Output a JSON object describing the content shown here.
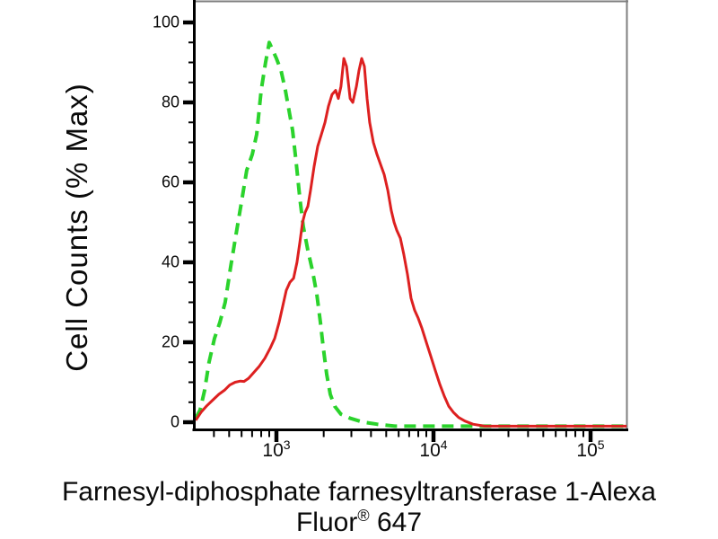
{
  "figure": {
    "y_axis": {
      "title": "Cell Counts (% Max)",
      "major_ticks": [
        0,
        20,
        40,
        60,
        80,
        100
      ],
      "minor_tick_step": 5,
      "range": [
        0,
        100
      ]
    },
    "x_axis": {
      "title_line1": "Farnesyl-diphosphate farnesyltransferase 1-Alexa",
      "title_line2_word": "Fluor",
      "title_line2_symbol": "®",
      "title_line2_number": " 647",
      "scale": "log10",
      "tick_base": "10",
      "major_tick_exponents": [
        3,
        4,
        5
      ],
      "minor_tick_mantissas": [
        2,
        3,
        4,
        5,
        6,
        7,
        8,
        9
      ],
      "range_log10": [
        2.49,
        5.23
      ]
    },
    "colors": {
      "red_curve": "#dd2020",
      "green_curve": "#2bd32c",
      "axis": "#000000",
      "frame": "#7f7f7f",
      "background": "#ffffff"
    }
  },
  "chart_data": {
    "type": "line",
    "subtype": "flow-cytometry-histogram-overlay",
    "title": "",
    "xlabel": "Farnesyl-diphosphate farnesyltransferase 1-Alexa Fluor® 647",
    "ylabel": "Cell Counts (% Max)",
    "x_scale": "log10",
    "xlim_log10": [
      2.49,
      5.23
    ],
    "ylim": [
      0,
      100
    ],
    "grid": false,
    "legend": "none",
    "baseline_pct": -1,
    "series": [
      {
        "name": "green_dashed_histogram",
        "color": "#2bd32c",
        "line_style": "dashed",
        "peak": {
          "x": 900,
          "pct": 95
        },
        "points_log10_pct": [
          [
            2.486,
            1
          ],
          [
            2.514,
            3
          ],
          [
            2.543,
            8
          ],
          [
            2.571,
            15
          ],
          [
            2.606,
            21
          ],
          [
            2.64,
            25
          ],
          [
            2.674,
            30
          ],
          [
            2.709,
            39
          ],
          [
            2.743,
            47
          ],
          [
            2.777,
            55
          ],
          [
            2.811,
            63
          ],
          [
            2.846,
            67
          ],
          [
            2.874,
            72
          ],
          [
            2.903,
            83
          ],
          [
            2.931,
            90
          ],
          [
            2.954,
            95
          ],
          [
            2.977,
            93
          ],
          [
            3.0,
            91
          ],
          [
            3.029,
            88
          ],
          [
            3.057,
            83
          ],
          [
            3.08,
            78
          ],
          [
            3.103,
            73
          ],
          [
            3.126,
            65
          ],
          [
            3.149,
            56
          ],
          [
            3.171,
            49
          ],
          [
            3.2,
            43
          ],
          [
            3.229,
            38
          ],
          [
            3.257,
            32
          ],
          [
            3.28,
            25
          ],
          [
            3.297,
            19
          ],
          [
            3.32,
            12
          ],
          [
            3.343,
            7
          ],
          [
            3.371,
            4
          ],
          [
            3.411,
            2
          ],
          [
            3.469,
            1
          ],
          [
            3.554,
            0
          ],
          [
            3.64,
            -0.5
          ],
          [
            3.754,
            -1
          ],
          [
            5.229,
            -1
          ]
        ]
      },
      {
        "name": "red_solid_histogram",
        "color": "#dd2020",
        "line_style": "solid",
        "peaks": [
          {
            "x": 2700,
            "pct": 91
          },
          {
            "x": 3500,
            "pct": 91
          }
        ],
        "points_log10_pct": [
          [
            2.486,
            0.5
          ],
          [
            2.52,
            2.5
          ],
          [
            2.554,
            4
          ],
          [
            2.594,
            5.5
          ],
          [
            2.634,
            7
          ],
          [
            2.669,
            8
          ],
          [
            2.703,
            9.3
          ],
          [
            2.737,
            10
          ],
          [
            2.771,
            10.3
          ],
          [
            2.794,
            10.2
          ],
          [
            2.823,
            11
          ],
          [
            2.857,
            12.5
          ],
          [
            2.891,
            14
          ],
          [
            2.926,
            16
          ],
          [
            2.96,
            18.5
          ],
          [
            2.989,
            21
          ],
          [
            3.017,
            25
          ],
          [
            3.04,
            29
          ],
          [
            3.063,
            33
          ],
          [
            3.086,
            35
          ],
          [
            3.109,
            36
          ],
          [
            3.131,
            40
          ],
          [
            3.149,
            45
          ],
          [
            3.166,
            50
          ],
          [
            3.183,
            52.5
          ],
          [
            3.2,
            54
          ],
          [
            3.217,
            58
          ],
          [
            3.24,
            64
          ],
          [
            3.263,
            69
          ],
          [
            3.286,
            72
          ],
          [
            3.309,
            75
          ],
          [
            3.331,
            79
          ],
          [
            3.354,
            82
          ],
          [
            3.377,
            83
          ],
          [
            3.394,
            81
          ],
          [
            3.411,
            84
          ],
          [
            3.429,
            91
          ],
          [
            3.446,
            89
          ],
          [
            3.469,
            81
          ],
          [
            3.486,
            80
          ],
          [
            3.509,
            84
          ],
          [
            3.526,
            88
          ],
          [
            3.543,
            91
          ],
          [
            3.56,
            89
          ],
          [
            3.577,
            81
          ],
          [
            3.594,
            75
          ],
          [
            3.617,
            70
          ],
          [
            3.64,
            67
          ],
          [
            3.663,
            64.5
          ],
          [
            3.686,
            62
          ],
          [
            3.709,
            58
          ],
          [
            3.731,
            53
          ],
          [
            3.749,
            50
          ],
          [
            3.766,
            48
          ],
          [
            3.789,
            46
          ],
          [
            3.811,
            42
          ],
          [
            3.834,
            37
          ],
          [
            3.857,
            31
          ],
          [
            3.88,
            28
          ],
          [
            3.903,
            26
          ],
          [
            3.926,
            23.5
          ],
          [
            3.954,
            20
          ],
          [
            3.983,
            16.5
          ],
          [
            4.011,
            13
          ],
          [
            4.04,
            9.5
          ],
          [
            4.069,
            6.5
          ],
          [
            4.097,
            4
          ],
          [
            4.126,
            2.5
          ],
          [
            4.16,
            1.2
          ],
          [
            4.2,
            0.3
          ],
          [
            4.251,
            -0.5
          ],
          [
            4.326,
            -1
          ],
          [
            5.229,
            -1
          ]
        ]
      }
    ]
  }
}
